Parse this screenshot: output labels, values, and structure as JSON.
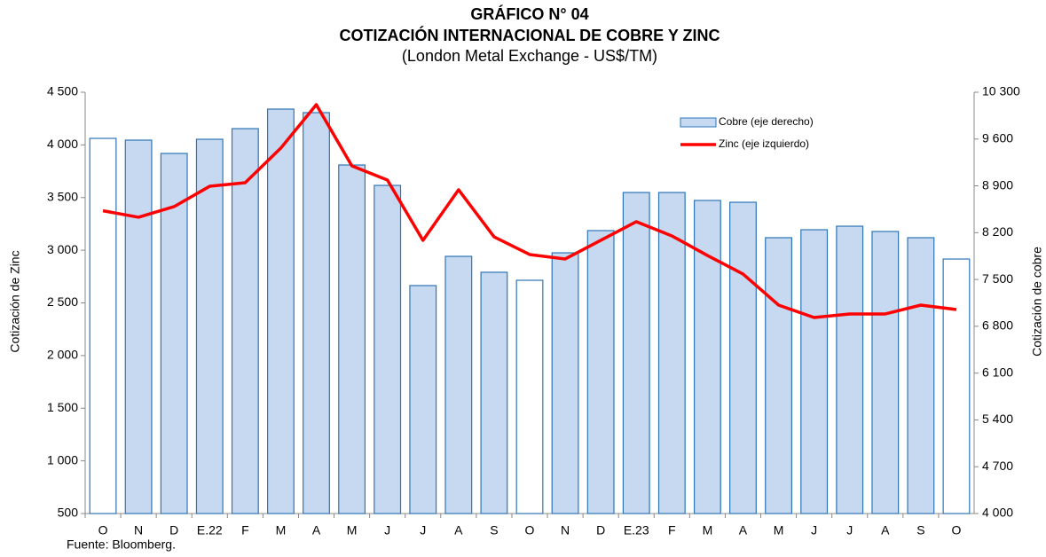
{
  "chart_data": {
    "type": "bar-line",
    "title": "GRÁFICO N° 04",
    "subtitle": "COTIZACIÓN INTERNACIONAL DE COBRE Y ZINC",
    "subtitle2": "(London Metal Exchange - US$/TM)",
    "ylabel": "Cotización de Zinc",
    "y2label": "Cotización de cobre",
    "source": "Fuente: Bloomberg.",
    "categories": [
      "O",
      "N",
      "D",
      "E.22",
      "F",
      "M",
      "A",
      "M",
      "J",
      "J",
      "A",
      "S",
      "O",
      "N",
      "D",
      "E.23",
      "F",
      "M",
      "A",
      "M",
      "J",
      "J",
      "A",
      "S",
      "O"
    ],
    "series": [
      {
        "name": "Cobre (eje derecho)",
        "kind": "bar",
        "axis": "y2",
        "color": "#c6d9f1",
        "edge": "#2e75b6",
        "colors": [
          "#ffffff",
          "#c6d9f1",
          "#c6d9f1",
          "#c6d9f1",
          "#c6d9f1",
          "#c6d9f1",
          "#c6d9f1",
          "#c6d9f1",
          "#c6d9f1",
          "#c6d9f1",
          "#c6d9f1",
          "#c6d9f1",
          "#ffffff",
          "#c6d9f1",
          "#c6d9f1",
          "#c6d9f1",
          "#c6d9f1",
          "#c6d9f1",
          "#c6d9f1",
          "#c6d9f1",
          "#c6d9f1",
          "#c6d9f1",
          "#c6d9f1",
          "#c6d9f1",
          "#ffffff"
        ],
        "values": [
          9610,
          9584,
          9385,
          9597,
          9756,
          10048,
          9995,
          9212,
          8907,
          7409,
          7846,
          7608,
          7488,
          7899,
          8231,
          8801,
          8801,
          8682,
          8655,
          8125,
          8244,
          8297,
          8218,
          8125,
          7806
        ]
      },
      {
        "name": "Zinc (eje izquierdo)",
        "kind": "line",
        "axis": "y",
        "color": "#ff0000",
        "values": [
          3375,
          3313,
          3414,
          3607,
          3641,
          3969,
          4382,
          3801,
          3666,
          3094,
          3574,
          3127,
          2959,
          2917,
          3094,
          3271,
          3136,
          2950,
          2774,
          2479,
          2361,
          2395,
          2395,
          2479,
          2437
        ]
      }
    ],
    "ylim": [
      500,
      4500
    ],
    "yticks": [
      500,
      {
        "value": 1000,
        "label": "1 000"
      },
      {
        "value": 1500,
        "label": "1 500"
      },
      {
        "value": 2000,
        "label": "2 000"
      },
      {
        "value": 2500,
        "label": "2 500"
      },
      {
        "value": 3000,
        "label": "3 000"
      },
      {
        "value": 3500,
        "label": "3 500"
      },
      {
        "value": 4000,
        "label": "4 000"
      },
      {
        "value": 4500,
        "label": "4 500"
      }
    ],
    "y2lim": [
      4000,
      10300
    ],
    "y2ticks": [
      {
        "value": 4000,
        "label": "4 000"
      },
      {
        "value": 4700,
        "label": "4 700"
      },
      {
        "value": 5400,
        "label": "5 400"
      },
      {
        "value": 6100,
        "label": "6 100"
      },
      {
        "value": 6800,
        "label": "6 800"
      },
      {
        "value": 7500,
        "label": "7 500"
      },
      {
        "value": 8200,
        "label": "8 200"
      },
      {
        "value": 8900,
        "label": "8 900"
      },
      {
        "value": 9600,
        "label": "9 600"
      },
      {
        "value": 10300,
        "label": "10 300"
      }
    ],
    "legend": "upper right"
  }
}
